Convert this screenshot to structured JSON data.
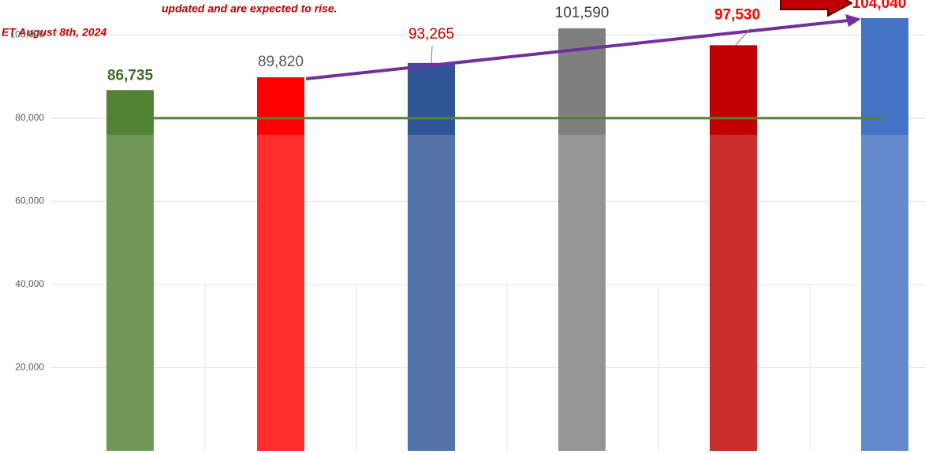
{
  "chart_data": {
    "type": "bar",
    "annotations": [
      "updated and are expected to rise.",
      "ET August 8th, 2024"
    ],
    "categories": [
      null,
      null,
      null,
      null,
      null,
      null
    ],
    "values": [
      86735,
      89820,
      93265,
      101590,
      97530,
      104040
    ],
    "value_labels": [
      "86,735",
      "89,820",
      "93,265",
      "101,590",
      "97,530",
      "104,040"
    ],
    "colors": [
      "#548235",
      "#ff0000",
      "#2f5597",
      "#7f7f7f",
      "#c00000",
      "#4472c4"
    ],
    "label_colors": [
      "#3f6a26",
      "#595959",
      "#c00000",
      "#404040",
      "#ff0000",
      "#ff0000"
    ],
    "ylim": [
      0,
      108400
    ],
    "yticks": [
      {
        "value": 20000,
        "label": "20,000"
      },
      {
        "value": 40000,
        "label": "40,000"
      },
      {
        "value": 60000,
        "label": "60,000"
      },
      {
        "value": 80000,
        "label": "80,000"
      },
      {
        "value": 100000,
        "label": "100,000"
      }
    ],
    "reference_line": {
      "value": 80000,
      "color": "#548235"
    },
    "grid": true
  }
}
